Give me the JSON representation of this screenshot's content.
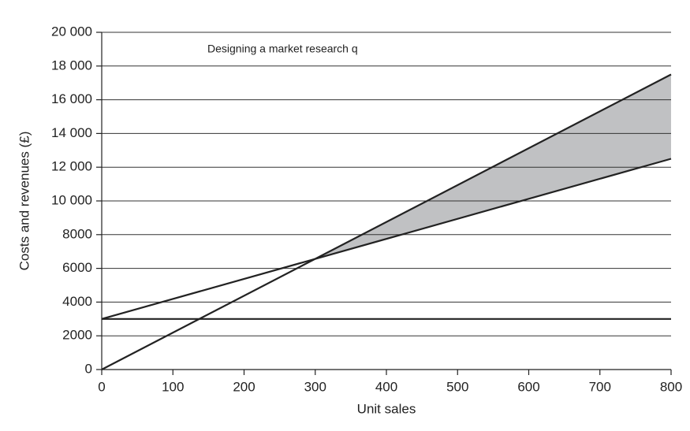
{
  "chart_data": {
    "type": "line",
    "annotation": "Designing a market research q",
    "xlabel": "Unit sales",
    "ylabel": "Costs and revenues (£)",
    "x": [
      0,
      800
    ],
    "series": [
      {
        "color": "#222222",
        "values": [
          3000,
          3000
        ]
      },
      {
        "color": "#222222",
        "values": [
          3000,
          12500
        ]
      },
      {
        "color": "#222222",
        "values": [
          0,
          17500
        ]
      }
    ],
    "fill_color": "#c0c1c3",
    "xlim": [
      0,
      800
    ],
    "xticks": [
      0,
      100,
      200,
      300,
      400,
      500,
      600,
      700,
      800
    ],
    "ylim": [
      0,
      20000
    ],
    "yticks": [
      0,
      2000,
      4000,
      6000,
      8000,
      {
        "value": 10000,
        "label": "10 000"
      },
      {
        "value": 12000,
        "label": "12 000"
      },
      {
        "value": 14000,
        "label": "14 000"
      },
      {
        "value": 16000,
        "label": "16 000"
      },
      {
        "value": 18000,
        "label": "18 000"
      },
      {
        "value": 20000,
        "label": "20 000"
      }
    ],
    "grid": true
  }
}
